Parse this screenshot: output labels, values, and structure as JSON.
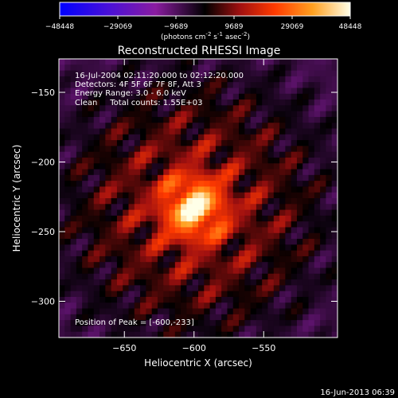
{
  "chart_data": {
    "type": "heatmap",
    "title": "Reconstructed RHESSI Image",
    "xlabel": "Heliocentric X (arcsec)",
    "ylabel": "Heliocentric Y (arcsec)",
    "x_range": [
      -697,
      -497
    ],
    "y_range": [
      -326,
      -126
    ],
    "x_ticks": [
      -650,
      -600,
      -550
    ],
    "y_ticks": [
      -150,
      -200,
      -250,
      -300
    ],
    "colorbar": {
      "ticks": [
        -48448,
        -29069,
        -9689,
        9689,
        29069,
        48448
      ],
      "unit_parts": [
        "(photons cm",
        "-2",
        " s",
        "-1",
        " asec",
        "-2",
        ")"
      ],
      "range": [
        -48448,
        48448
      ]
    },
    "info_lines": [
      "16-Jul-2004 02:11:20.000 to 02:12:20.000",
      "Detectors: 4F 5F 6F 7F 8F, Att 3",
      "Energy Range: 3.0 - 6.0 keV",
      "Clean     Total counts: 1.55E+03"
    ],
    "peak_label": "Position of Peak = [-600,-233]",
    "peak_position": [
      -600,
      -233
    ],
    "peak_value": 48448,
    "timestamp": "16-Jun-2013 06:39"
  }
}
